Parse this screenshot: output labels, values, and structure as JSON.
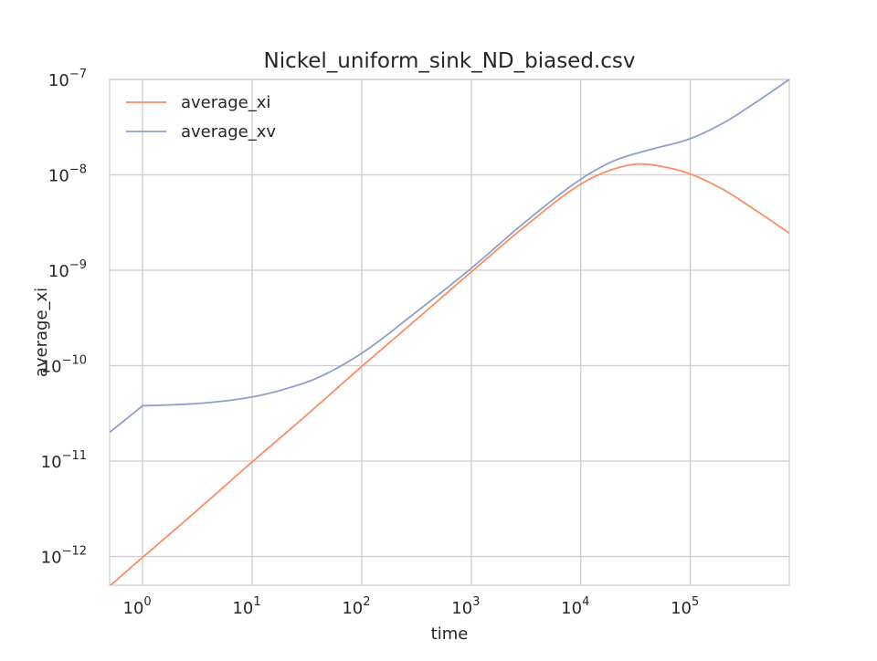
{
  "chart_data": {
    "type": "line",
    "title": "Nickel_uniform_sink_ND_biased.csv",
    "xlabel": "time",
    "ylabel": "average_xi",
    "x_scale": "log",
    "y_scale": "log",
    "xlim": [
      0.5,
      800000
    ],
    "ylim": [
      5e-13,
      1e-07
    ],
    "grid": true,
    "legend_position": "top-left",
    "x_ticks": [
      {
        "value": 1,
        "base": "10",
        "exp": "0"
      },
      {
        "value": 10,
        "base": "10",
        "exp": "1"
      },
      {
        "value": 100,
        "base": "10",
        "exp": "2"
      },
      {
        "value": 1000,
        "base": "10",
        "exp": "3"
      },
      {
        "value": 10000,
        "base": "10",
        "exp": "4"
      },
      {
        "value": 100000,
        "base": "10",
        "exp": "5"
      }
    ],
    "y_ticks": [
      {
        "value": 1e-12,
        "base": "10",
        "exp": "−12"
      },
      {
        "value": 1e-11,
        "base": "10",
        "exp": "−11"
      },
      {
        "value": 1e-10,
        "base": "10",
        "exp": "−10"
      },
      {
        "value": 1e-09,
        "base": "10",
        "exp": "−9"
      },
      {
        "value": 1e-08,
        "base": "10",
        "exp": "−8"
      },
      {
        "value": 1e-07,
        "base": "10",
        "exp": "−7"
      }
    ],
    "series": [
      {
        "name": "average_xi",
        "color": "#fc8d62",
        "points": [
          [
            0.5,
            4.9e-13
          ],
          [
            1,
            9.8e-13
          ],
          [
            3,
            2.9e-12
          ],
          [
            10,
            9.8e-12
          ],
          [
            30,
            2.9e-11
          ],
          [
            100,
            9.8e-11
          ],
          [
            300,
            2.9e-10
          ],
          [
            1000,
            9.6e-10
          ],
          [
            3000,
            2.8e-09
          ],
          [
            10000,
            8e-09
          ],
          [
            20000,
            1.15e-08
          ],
          [
            35000,
            1.3e-08
          ],
          [
            60000,
            1.2e-08
          ],
          [
            100000,
            1.02e-08
          ],
          [
            200000,
            7e-09
          ],
          [
            400000,
            4.2e-09
          ],
          [
            800000,
            2.45e-09
          ]
        ]
      },
      {
        "name": "average_xv",
        "color": "#8da0cb",
        "points": [
          [
            0.5,
            2e-11
          ],
          [
            1,
            3.8e-11
          ],
          [
            2,
            3.9e-11
          ],
          [
            4,
            4.1e-11
          ],
          [
            10,
            4.7e-11
          ],
          [
            20,
            5.7e-11
          ],
          [
            40,
            7.5e-11
          ],
          [
            100,
            1.35e-10
          ],
          [
            300,
            3.5e-10
          ],
          [
            1000,
            1.05e-09
          ],
          [
            3000,
            3.1e-09
          ],
          [
            10000,
            9e-09
          ],
          [
            20000,
            1.4e-08
          ],
          [
            40000,
            1.8e-08
          ],
          [
            100000,
            2.4e-08
          ],
          [
            200000,
            3.5e-08
          ],
          [
            400000,
            5.8e-08
          ],
          [
            800000,
            1e-07
          ]
        ]
      }
    ]
  }
}
